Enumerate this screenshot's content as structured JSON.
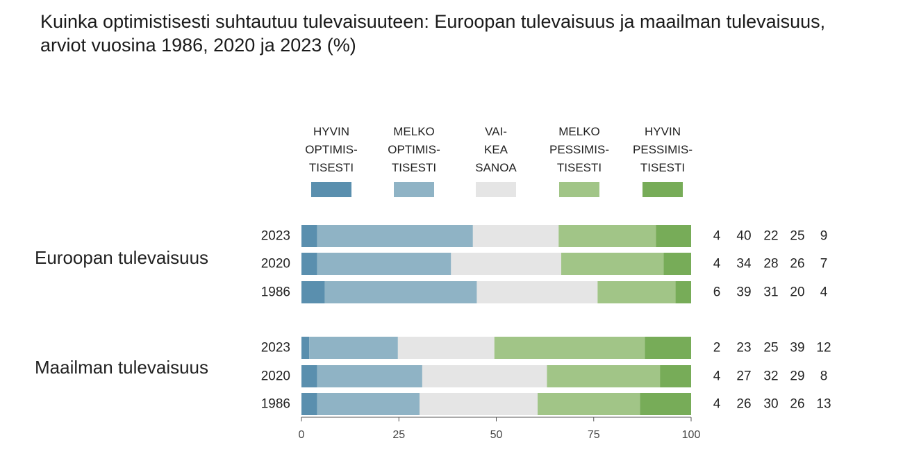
{
  "title": "Kuinka optimistisesti suhtautuu tulevaisuuteen: Euroopan tulevaisuus ja maailman tulevaisuus, arviot vuosina 1986, 2020 ja 2023 (%)",
  "chart_data": {
    "type": "bar",
    "orientation": "horizontal",
    "stacked": true,
    "title": "Kuinka optimistisesti suhtautuu tulevaisuuteen: Euroopan tulevaisuus ja maailman tulevaisuus, arviot vuosina 1986, 2020 ja 2023 (%)",
    "xlim": [
      0,
      100
    ],
    "xticks": [
      "0",
      "25",
      "50",
      "75",
      "100"
    ],
    "grid": false,
    "legend_position": "top",
    "series": [
      {
        "name": "HYVIN OPTIMIS- TISESTI",
        "label_lines": [
          "HYVIN",
          "OPTIMIS-",
          "TISESTI"
        ],
        "color": "#5a8fae"
      },
      {
        "name": "MELKO OPTIMIS- TISESTI",
        "label_lines": [
          "MELKO",
          "OPTIMIS-",
          "TISESTI"
        ],
        "color": "#8fb3c5"
      },
      {
        "name": "VAI- KEA SANOA",
        "label_lines": [
          "VAI-",
          "KEA",
          "SANOA"
        ],
        "color": "#e5e5e5"
      },
      {
        "name": "MELKO PESSIMIS- TISESTI",
        "label_lines": [
          "MELKO",
          "PESSIMIS-",
          "TISESTI"
        ],
        "color": "#a1c587"
      },
      {
        "name": "HYVIN PESSIMIS- TISESTI",
        "label_lines": [
          "HYVIN",
          "PESSIMIS-",
          "TISESTI"
        ],
        "color": "#77ac58"
      }
    ],
    "groups": [
      {
        "name": "Euroopan tulevaisuus",
        "rows": [
          {
            "year": "2023",
            "values": [
              4,
              40,
              22,
              25,
              9
            ]
          },
          {
            "year": "2020",
            "values": [
              4,
              34,
              28,
              26,
              7
            ]
          },
          {
            "year": "1986",
            "values": [
              6,
              39,
              31,
              20,
              4
            ]
          }
        ]
      },
      {
        "name": "Maailman tulevaisuus",
        "rows": [
          {
            "year": "2023",
            "values": [
              2,
              23,
              25,
              39,
              12
            ]
          },
          {
            "year": "2020",
            "values": [
              4,
              27,
              32,
              29,
              8
            ]
          },
          {
            "year": "1986",
            "values": [
              4,
              26,
              30,
              26,
              13
            ]
          }
        ]
      }
    ]
  }
}
